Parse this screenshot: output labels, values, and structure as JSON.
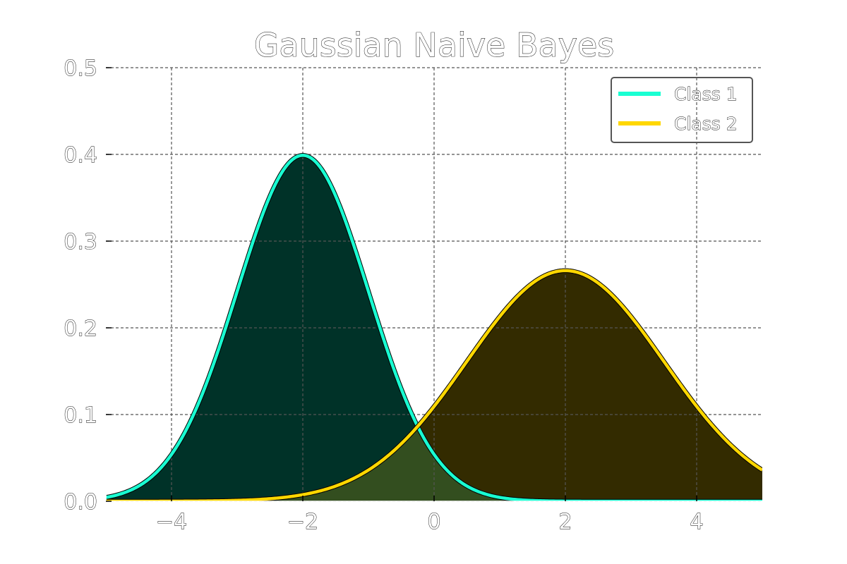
{
  "chart_data": {
    "type": "line",
    "title": "Gaussian Naive Bayes",
    "xlabel": "",
    "ylabel": "",
    "xlim": [
      -5,
      5
    ],
    "ylim": [
      0,
      0.5
    ],
    "xticks": [
      -4,
      -2,
      0,
      2,
      4
    ],
    "xtick_labels": [
      "−4",
      "−2",
      "0",
      "2",
      "4"
    ],
    "yticks": [
      0.0,
      0.1,
      0.2,
      0.3,
      0.4,
      0.5
    ],
    "ytick_labels": [
      "0.0",
      "0.1",
      "0.2",
      "0.3",
      "0.4",
      "0.5"
    ],
    "grid": true,
    "legend_position": "top-right",
    "series": [
      {
        "name": "Class 1",
        "distribution": "normal",
        "mean": -2,
        "std": 1,
        "peak": 0.4,
        "color": "#19ffd2",
        "fill_color": "#003228"
      },
      {
        "name": "Class 2",
        "distribution": "normal",
        "mean": 2,
        "std": 1.5,
        "peak": 0.266,
        "color": "#ffd700",
        "fill_color": "#332b00"
      }
    ],
    "overlap_fill_color": "#334e1f"
  }
}
